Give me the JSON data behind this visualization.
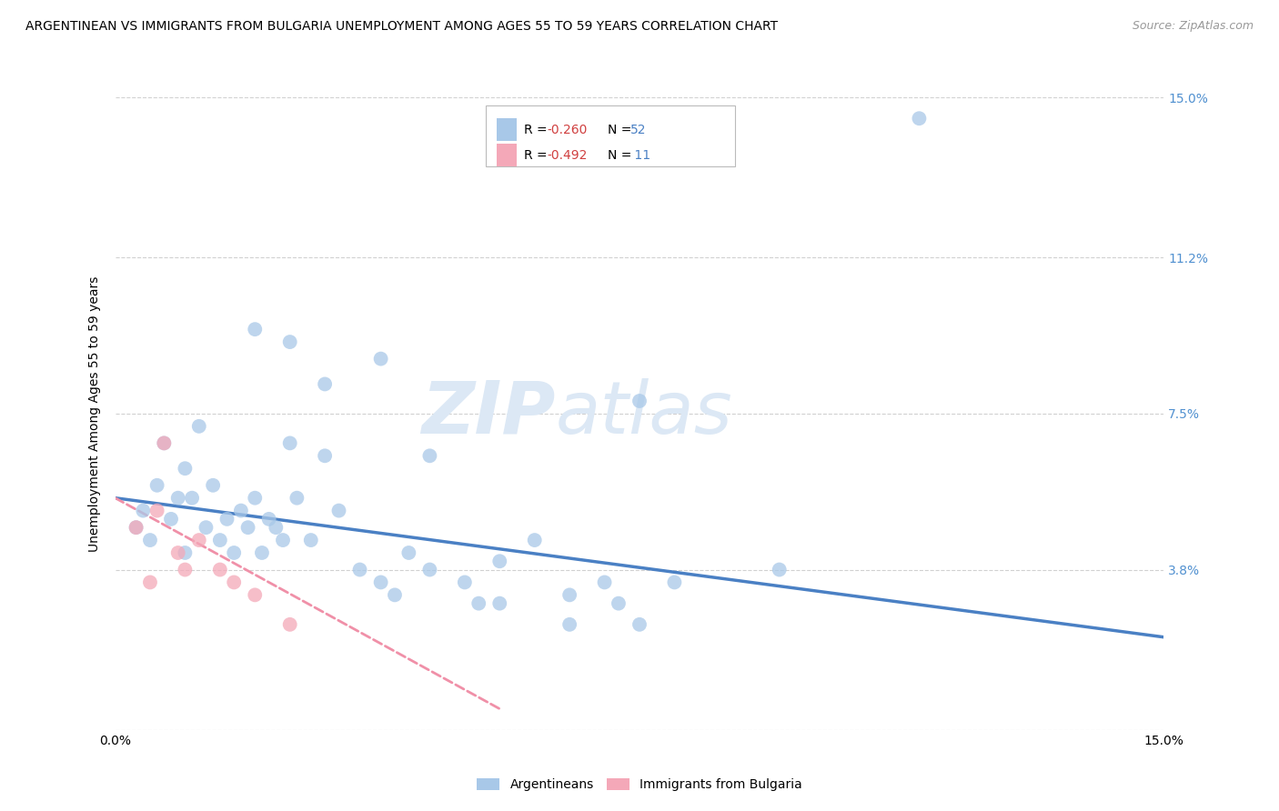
{
  "title": "ARGENTINEAN VS IMMIGRANTS FROM BULGARIA UNEMPLOYMENT AMONG AGES 55 TO 59 YEARS CORRELATION CHART",
  "source": "Source: ZipAtlas.com",
  "ylabel": "Unemployment Among Ages 55 to 59 years",
  "xlim": [
    0.0,
    15.0
  ],
  "ylim": [
    0.0,
    15.0
  ],
  "yticks": [
    0.0,
    3.8,
    7.5,
    11.2,
    15.0
  ],
  "ytick_labels": [
    "",
    "3.8%",
    "7.5%",
    "11.2%",
    "15.0%"
  ],
  "arg_color": "#a8c8e8",
  "bul_color": "#f4a8b8",
  "arg_line_color": "#4a80c4",
  "bul_line_color": "#f090a8",
  "watermark_zip": "ZIP",
  "watermark_atlas": "atlas",
  "argentineans_x": [
    0.3,
    0.4,
    0.5,
    0.6,
    0.7,
    0.8,
    0.9,
    1.0,
    1.0,
    1.1,
    1.2,
    1.3,
    1.4,
    1.5,
    1.6,
    1.7,
    1.8,
    1.9,
    2.0,
    2.1,
    2.2,
    2.3,
    2.4,
    2.5,
    2.6,
    2.8,
    3.0,
    3.2,
    3.5,
    3.8,
    4.0,
    4.2,
    4.5,
    5.0,
    5.2,
    5.5,
    6.0,
    6.5,
    7.0,
    7.2,
    7.5,
    8.0,
    9.5,
    2.0,
    2.5,
    3.0,
    3.8,
    4.5,
    5.5,
    6.5,
    7.5,
    11.5
  ],
  "argentineans_y": [
    4.8,
    5.2,
    4.5,
    5.8,
    6.8,
    5.0,
    5.5,
    4.2,
    6.2,
    5.5,
    7.2,
    4.8,
    5.8,
    4.5,
    5.0,
    4.2,
    5.2,
    4.8,
    5.5,
    4.2,
    5.0,
    4.8,
    4.5,
    6.8,
    5.5,
    4.5,
    6.5,
    5.2,
    3.8,
    3.5,
    3.2,
    4.2,
    6.5,
    3.5,
    3.0,
    4.0,
    4.5,
    3.2,
    3.5,
    3.0,
    7.8,
    3.5,
    3.8,
    9.5,
    9.2,
    8.2,
    8.8,
    3.8,
    3.0,
    2.5,
    2.5,
    14.5
  ],
  "bulgaria_x": [
    0.3,
    0.5,
    0.7,
    0.9,
    1.0,
    1.2,
    1.5,
    1.7,
    2.0,
    2.5,
    0.6
  ],
  "bulgaria_y": [
    4.8,
    3.5,
    6.8,
    4.2,
    3.8,
    4.5,
    3.8,
    3.5,
    3.2,
    2.5,
    5.2
  ],
  "arg_trend_x": [
    0.0,
    15.0
  ],
  "arg_trend_y": [
    5.5,
    2.2
  ],
  "bul_trend_x": [
    0.0,
    5.5
  ],
  "bul_trend_y": [
    5.5,
    0.5
  ]
}
